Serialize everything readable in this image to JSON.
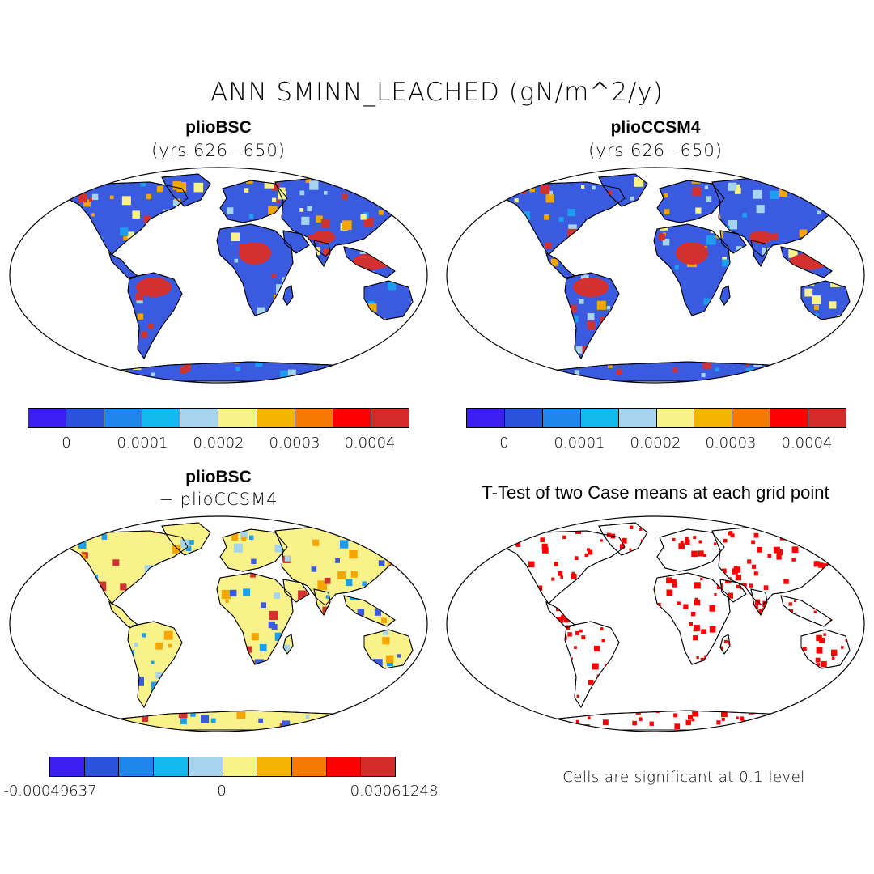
{
  "figure": {
    "title": "ANN SMINN_LEACHED (gN/m^2/y)"
  },
  "panels": [
    {
      "id": "bsc",
      "title": "plioBSC",
      "subtitle": "(yrs 626−650)",
      "fields": {
        "base": "#3a5ae0",
        "hot": [
          "#d33030",
          "#f5a500",
          "#f9f28a",
          "#a6d4ef",
          "#1c9df0"
        ],
        "ocean": "#ffffff"
      }
    },
    {
      "id": "ccsm4",
      "title": "plioCCSM4",
      "subtitle": "(yrs 626−650)",
      "fields": {
        "base": "#3a5ae0",
        "hot": [
          "#d33030",
          "#f5a500",
          "#f9f28a",
          "#a6d4ef",
          "#1c9df0"
        ],
        "ocean": "#ffffff"
      }
    },
    {
      "id": "diff",
      "title": "plioBSC",
      "subtitle": "− plioCCSM4",
      "fields": {
        "base": "#f9f28a",
        "hot": [
          "#a6d4ef",
          "#f5a500",
          "#3a5ae0",
          "#d33030",
          "#1c9df0"
        ],
        "ocean": "#ffffff"
      }
    },
    {
      "id": "ttest",
      "title": "T-Test of two Case means at each grid point",
      "fields": {
        "base": "#ffffff",
        "hot": [
          "#ff0000"
        ],
        "ocean": "#ffffff"
      }
    }
  ],
  "colorbars": {
    "colors": [
      "#3c1ef0",
      "#2b52da",
      "#1e86ec",
      "#14b9ee",
      "#a6d4ef",
      "#f9f28a",
      "#f5b400",
      "#f77a00",
      "#ff0000",
      "#d42a2a"
    ],
    "top": {
      "ticks": [
        "0",
        "0.0001",
        "0.0002",
        "0.0003",
        "0.0004"
      ]
    },
    "diff": {
      "ticks": [
        "-0.00049637",
        "0",
        "0.00061248"
      ]
    }
  },
  "note": "Cells are significant at 0.1 level"
}
